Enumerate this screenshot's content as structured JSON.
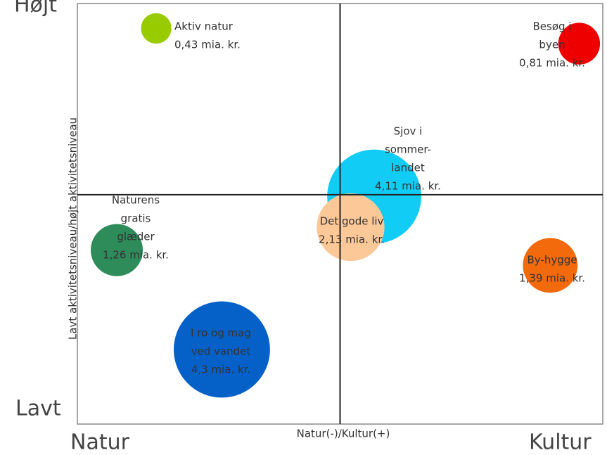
{
  "chart_data": {
    "type": "bubble",
    "x_label": "Natur(-)/Kultur(+)",
    "y_label": "Lavt aktivitetsniveau/højt aktivitetsniveau",
    "x_low": "Natur",
    "x_high": "Kultur",
    "y_low": "Lavt",
    "y_high": "Højt",
    "xlim": [
      -1,
      1
    ],
    "ylim": [
      -1.2,
      1
    ],
    "series": [
      {
        "name": [
          "Aktiv natur"
        ],
        "x": -0.7,
        "y": 0.87,
        "size": 0.43,
        "value_label": "0,43 mia. kr.",
        "color": "#99cc00"
      },
      {
        "name": [
          "Besøg i",
          "byen"
        ],
        "x": 0.91,
        "y": 0.79,
        "size": 0.81,
        "value_label": "0,81 mia. kr.",
        "color": "#ee0000"
      },
      {
        "name": [
          "Sjov i",
          "sommer-",
          "landet"
        ],
        "x": 0.13,
        "y": -0.01,
        "size": 4.11,
        "value_label": "4,11 mia. kr.",
        "color": "#11ccf5"
      },
      {
        "name": [
          "Det gode liv"
        ],
        "x": 0.04,
        "y": -0.17,
        "size": 2.13,
        "value_label": "2,13 mia. kr.",
        "color": "#fdc897"
      },
      {
        "name": [
          "Naturens",
          "gratis",
          "glæder"
        ],
        "x": -0.85,
        "y": -0.29,
        "size": 1.26,
        "value_label": "1,26 mia. kr.",
        "color": "#2e8b5a"
      },
      {
        "name": [
          "By-hygge"
        ],
        "x": 0.8,
        "y": -0.37,
        "size": 1.39,
        "value_label": "1,39 mia. kr.",
        "color": "#f26a0c"
      },
      {
        "name": [
          "I ro og mag",
          "ved vandet"
        ],
        "x": -0.45,
        "y": -0.81,
        "size": 4.3,
        "value_label": "4,3 mia. kr.",
        "color": "#0561c8"
      }
    ]
  }
}
